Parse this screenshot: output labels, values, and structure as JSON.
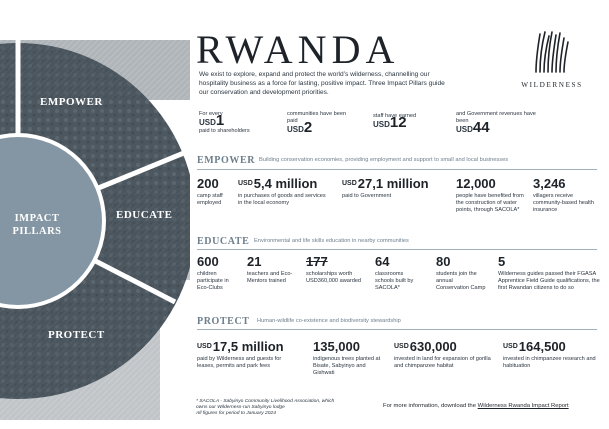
{
  "title": "RWANDA",
  "intro": "We exist to explore, expand and protect the world’s wilderness, channelling our hospitality business as a force for lasting, positive impact. Three Impact Pillars guide our conservation and development priorities.",
  "brand": "WILDERNESS",
  "wheel": {
    "center": "IMPACT PILLARS",
    "empower": "EMPOWER",
    "educate": "EDUCATE",
    "protect": "PROTECT"
  },
  "top_stats": [
    {
      "pre": "For every",
      "usd": "USD",
      "num": "1",
      "post": "paid to shareholders"
    },
    {
      "pre": "communities have been paid",
      "usd": "USD",
      "num": "2",
      "post": ""
    },
    {
      "pre": "staff have earned",
      "usd": "USD",
      "num": "12",
      "post": ""
    },
    {
      "pre": "and Government revenues have been",
      "usd": "USD",
      "num": "44",
      "post": ""
    }
  ],
  "empower": {
    "title": "EMPOWER",
    "subtitle": "Building conservation economies, providing employment and support to small and local businesses",
    "stats": [
      {
        "usd": "",
        "num": "200",
        "desc": "camp staff employed"
      },
      {
        "usd": "USD",
        "num": "5,4 million",
        "desc": "in purchases of goods and services in the local economy"
      },
      {
        "usd": "USD",
        "num": "27,1 million",
        "desc": "paid to Government"
      },
      {
        "usd": "",
        "num": "12,000",
        "desc": "people have benefited from the construction of water points, through SACOLA*"
      },
      {
        "usd": "",
        "num": "3,246",
        "desc": "villagers receive community-based health insurance"
      }
    ]
  },
  "educate": {
    "title": "EDUCATE",
    "subtitle": "Environmental and life skills education in nearby communities",
    "stats": [
      {
        "num": "600",
        "desc": "children participate in Eco-Clubs"
      },
      {
        "num": "21",
        "desc": "teachers and Eco-Mentors trained"
      },
      {
        "num": "177",
        "desc": "scholarships worth USD360,000 awarded"
      },
      {
        "num": "64",
        "desc": "classrooms schools built by SACOLA*"
      },
      {
        "num": "80",
        "desc": "students join the annual Conservation Camp"
      },
      {
        "num": "5",
        "desc": "Wilderness guides passed their FGASA Apprentice Field Guide qualifications, the first Rwandan citizens to do so"
      }
    ]
  },
  "protect": {
    "title": "PROTECT",
    "subtitle": "Human-wildlife co-existence and biodiversity stewardship",
    "stats": [
      {
        "usd": "USD",
        "num": "17,5 million",
        "desc": "paid by Wilderness and guests for leases, permits and park fees"
      },
      {
        "usd": "",
        "num": "135,000",
        "desc": "indigenous trees planted at Bisate, Sabyinyo and Gishwati"
      },
      {
        "usd": "USD",
        "num": "630,000",
        "desc": "invested in land for expansion of gorilla and chimpanzee habitat"
      },
      {
        "usd": "USD",
        "num": "164,500",
        "desc": "invested in chimpanzee research and habituation"
      }
    ]
  },
  "footnote": {
    "line1": "* SACOLA - Sabyinyo Community Livelihood Association, which owns our Wilderness-run Sabyinyo lodge",
    "line2": "All figures for period to January 2024"
  },
  "more": {
    "text": "For more information, download the",
    "link": "Wilderness Rwanda Impact Report"
  },
  "colors": {
    "wheel_dark": "#5a6670",
    "wheel_center": "#8496a4",
    "accent": "#6d7f8d"
  }
}
